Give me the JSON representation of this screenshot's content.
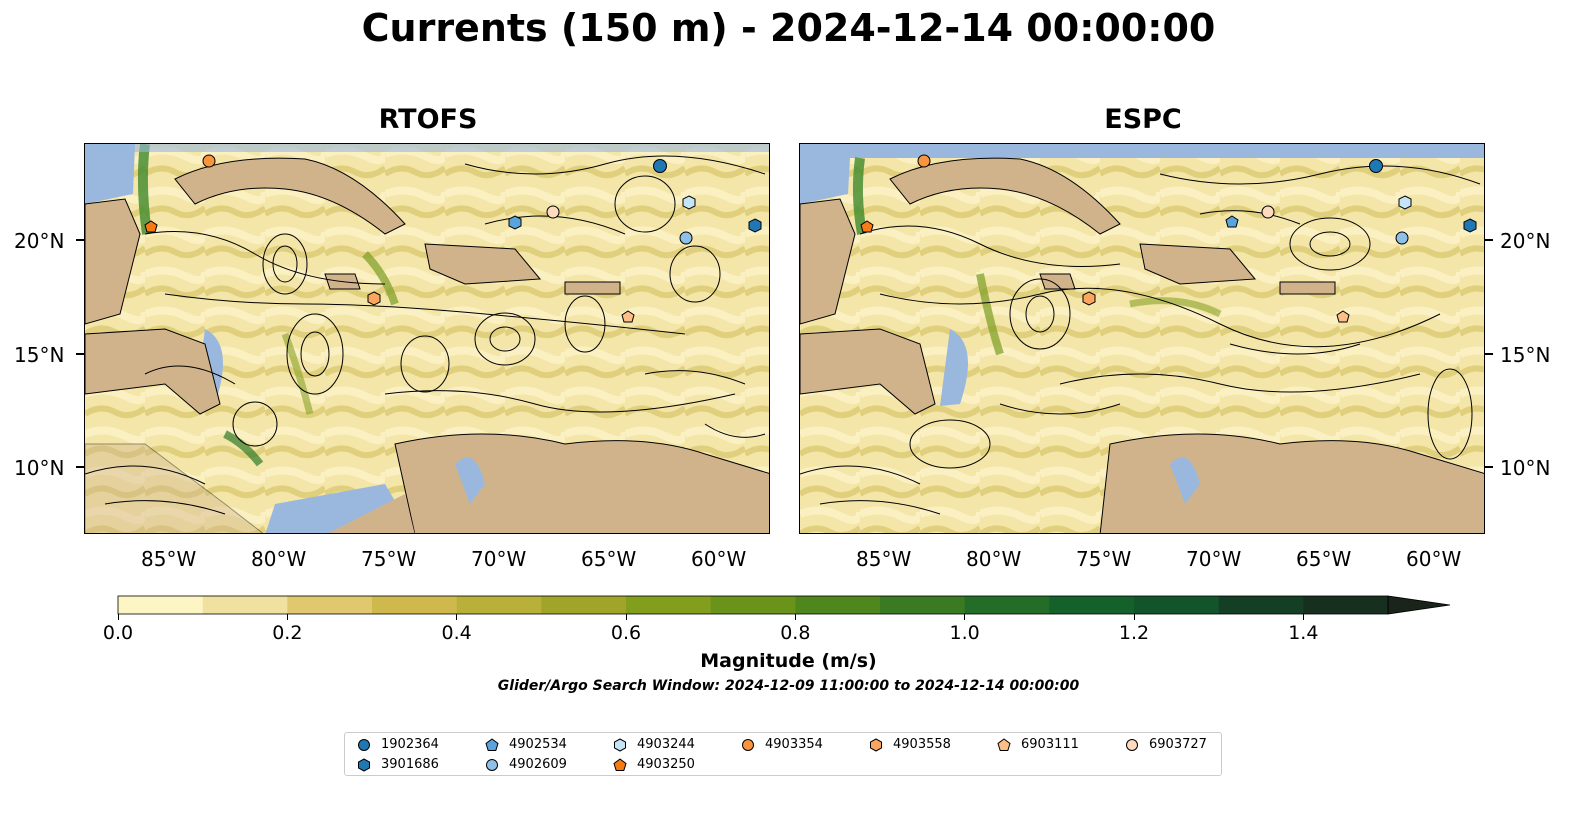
{
  "title": "Currents (150 m) - 2024-12-14 00:00:00",
  "panels": [
    {
      "title": "RTOFS"
    },
    {
      "title": "ESPC"
    }
  ],
  "lat_labels": [
    "20°N",
    "15°N",
    "10°N"
  ],
  "lon_labels": [
    "85°W",
    "80°W",
    "75°W",
    "70°W",
    "65°W",
    "60°W"
  ],
  "colorbar": {
    "label": "Magnitude (m/s)",
    "min": 0.0,
    "max": 1.5,
    "extend": "max",
    "tick_labels": [
      "0.0",
      "0.2",
      "0.4",
      "0.6",
      "0.8",
      "1.0",
      "1.2",
      "1.4"
    ],
    "colors": [
      "#fdf6c4",
      "#f0e1a0",
      "#dfc86e",
      "#cfb84c",
      "#b9b03a",
      "#a0a52a",
      "#839d1c",
      "#699319",
      "#4f871d",
      "#3a7a22",
      "#236d28",
      "#14612b",
      "#12552a",
      "#153f25",
      "#172f1f",
      "#1b241a"
    ]
  },
  "search_window": "Glider/Argo Search Window: 2024-12-09 11:00:00 to 2024-12-14 00:00:00",
  "legend": [
    {
      "id": "1902364",
      "marker": "circle",
      "color": "#1f77b4"
    },
    {
      "id": "3901686",
      "marker": "hexagon",
      "color": "#1f77b4"
    },
    {
      "id": "4902534",
      "marker": "pentagon",
      "color": "#5ba3dc"
    },
    {
      "id": "4902609",
      "marker": "circle",
      "color": "#8fc1e8"
    },
    {
      "id": "4903244",
      "marker": "hexagon",
      "color": "#c6e4f7"
    },
    {
      "id": "4903250",
      "marker": "pentagon",
      "color": "#f57b12"
    },
    {
      "id": "4903354",
      "marker": "circle",
      "color": "#f9953c"
    },
    {
      "id": "4903558",
      "marker": "hexagon",
      "color": "#fca55e"
    },
    {
      "id": "6903111",
      "marker": "pentagon",
      "color": "#fdbf86"
    },
    {
      "id": "6903727",
      "marker": "circle",
      "color": "#fddbbe"
    }
  ]
}
